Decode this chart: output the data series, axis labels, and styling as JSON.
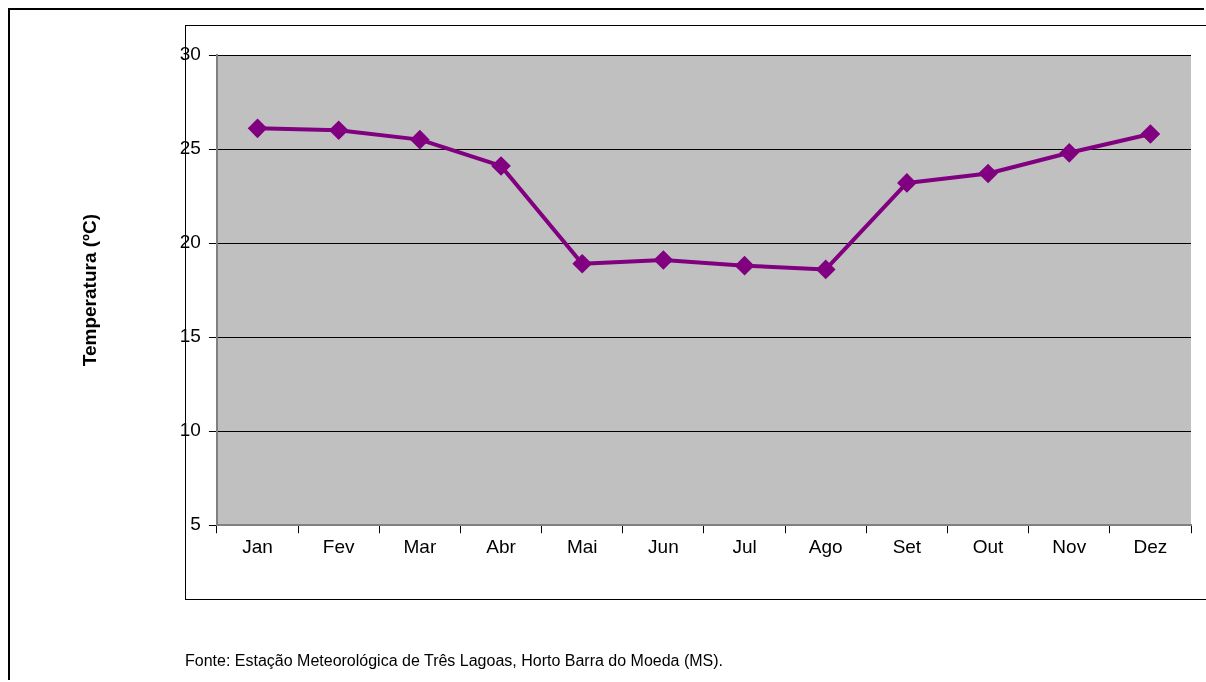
{
  "chart_data": {
    "type": "line",
    "ylabel": "Temperatura (ºC)",
    "categories": [
      "Jan",
      "Fev",
      "Mar",
      "Abr",
      "Mai",
      "Jun",
      "Jul",
      "Ago",
      "Set",
      "Out",
      "Nov",
      "Dez"
    ],
    "series": [
      {
        "color": "#800080",
        "values": [
          26.1,
          26.0,
          25.5,
          24.1,
          18.9,
          19.1,
          18.8,
          18.6,
          23.2,
          23.7,
          24.8,
          25.8
        ]
      }
    ],
    "ylim": [
      5,
      30
    ],
    "yticks": [
      5,
      10,
      15,
      20,
      25,
      30
    ],
    "grid": "y",
    "legend": false,
    "marker": "diamond",
    "line_style": "solid",
    "annotations": [
      "Fonte: Estação Meteorológica de Três Lagoas, Horto Barra do Moeda (MS)."
    ]
  }
}
